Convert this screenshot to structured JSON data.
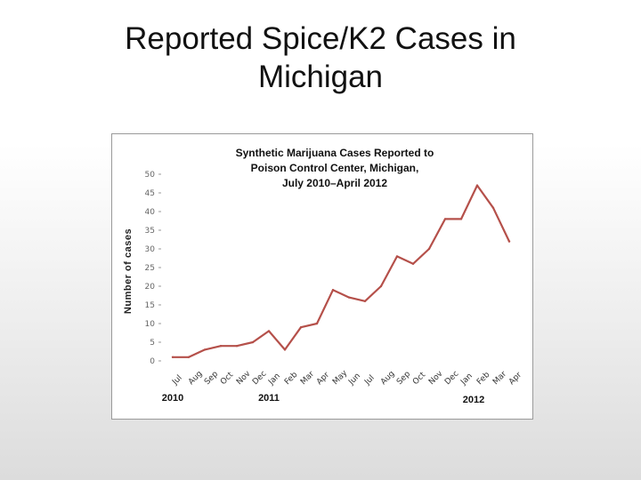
{
  "slide": {
    "title_line1": "Reported Spice/K2 Cases in",
    "title_line2": "Michigan"
  },
  "chart_data": {
    "type": "line",
    "title": [
      "Synthetic Marijuana Cases Reported to",
      "Poison Control Center, Michigan,",
      "July 2010–April 2012"
    ],
    "ylabel": "Number of cases",
    "xlabel": "",
    "ylim": [
      0,
      50
    ],
    "yticks": [
      0,
      5,
      10,
      15,
      20,
      25,
      30,
      35,
      40,
      45,
      50
    ],
    "categories": [
      "Jul",
      "Aug",
      "Sep",
      "Oct",
      "Nov",
      "Dec",
      "Jan",
      "Feb",
      "Mar",
      "Apr",
      "May",
      "Jun",
      "Jul",
      "Aug",
      "Sep",
      "Oct",
      "Nov",
      "Dec",
      "Jan",
      "Feb",
      "Mar",
      "Apr"
    ],
    "years": [
      {
        "label": "2010",
        "start_index": 0
      },
      {
        "label": "2011",
        "start_index": 6
      },
      {
        "label": "2012",
        "start_index": 18
      }
    ],
    "series": [
      {
        "color": "#b5504a",
        "values": [
          1,
          1,
          3,
          4,
          4,
          5,
          8,
          3,
          9,
          10,
          19,
          17,
          16,
          20,
          28,
          26,
          30,
          38,
          38,
          47,
          41,
          32
        ]
      }
    ],
    "grid": false,
    "legend": "none"
  }
}
